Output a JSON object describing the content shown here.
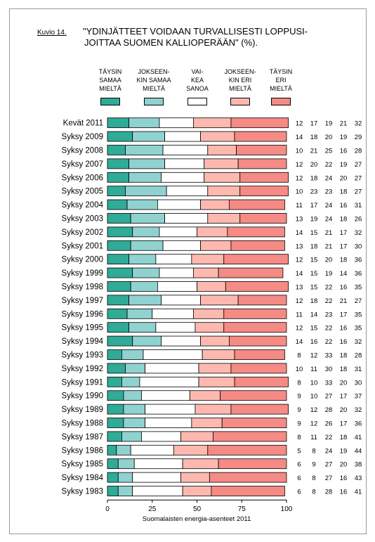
{
  "figure": {
    "label": "Kuvio 14.",
    "title_line1": "\"YDINJÄTTEET VOIDAAN TURVALLISESTI LOPPUSI-",
    "title_line2": "JOITTAA SUOMEN KALLIOPERÄÄN\" (%).",
    "source": "Suomalaisten energia-asenteet 2011"
  },
  "legend": [
    {
      "line1": "TÄYSIN",
      "line2": "SAMAA",
      "line3": "MIELTÄ",
      "color": "#2fab97"
    },
    {
      "line1": "JOKSEEN-",
      "line2": "KIN SAMAA",
      "line3": "MIELTÄ",
      "color": "#8fd2d0"
    },
    {
      "line1": "VAI-",
      "line2": "KEA",
      "line3": "SANOA",
      "color": "#ffffff"
    },
    {
      "line1": "JOKSEEN-",
      "line2": "KIN ERI",
      "line3": "MIELTÄ",
      "color": "#fdb9b0"
    },
    {
      "line1": "TÄYSIN",
      "line2": "ERI",
      "line3": "MIELTÄ",
      "color": "#f58b84"
    }
  ],
  "chart_data": {
    "type": "bar",
    "orientation": "horizontal",
    "stacked": true,
    "xlim": [
      0,
      100
    ],
    "xticks": [
      0,
      25,
      50,
      75,
      100
    ],
    "categories": [
      "Kevät 2011",
      "Syksy 2009",
      "Syksy 2008",
      "Syksy 2007",
      "Syksy 2006",
      "Syksy 2005",
      "Syksy 2004",
      "Syksy 2003",
      "Syksy 2002",
      "Syksy 2001",
      "Syksy 2000",
      "Syksy 1999",
      "Syksy 1998",
      "Syksy 1997",
      "Syksy 1996",
      "Syksy 1995",
      "Syksy 1994",
      "Syksy 1993",
      "Syksy 1992",
      "Syksy 1991",
      "Syksy 1990",
      "Syksy 1989",
      "Syksy 1988",
      "Syksy 1987",
      "Syksy 1986",
      "Syksy 1985",
      "Syksy 1984",
      "Syksy 1983"
    ],
    "series": [
      {
        "name": "TÄYSIN SAMAA MIELTÄ",
        "color": "#2fab97",
        "values": [
          12,
          14,
          10,
          12,
          12,
          10,
          11,
          13,
          14,
          13,
          12,
          14,
          13,
          12,
          11,
          12,
          14,
          8,
          10,
          8,
          9,
          9,
          9,
          8,
          5,
          6,
          6,
          6
        ]
      },
      {
        "name": "JOKSEENKIN SAMAA MIELTÄ",
        "color": "#8fd2d0",
        "values": [
          17,
          18,
          21,
          20,
          18,
          23,
          17,
          19,
          15,
          18,
          15,
          15,
          15,
          18,
          14,
          15,
          16,
          12,
          11,
          10,
          10,
          12,
          12,
          11,
          8,
          9,
          8,
          8
        ]
      },
      {
        "name": "VAIKEA SANOA",
        "color": "#ffffff",
        "values": [
          19,
          20,
          25,
          22,
          24,
          23,
          24,
          24,
          21,
          21,
          20,
          19,
          22,
          22,
          23,
          22,
          22,
          33,
          30,
          33,
          27,
          28,
          26,
          22,
          24,
          27,
          27,
          28
        ]
      },
      {
        "name": "JOKSEENKIN ERI MIELTÄ",
        "color": "#fdb9b0",
        "values": [
          21,
          19,
          16,
          19,
          20,
          18,
          16,
          18,
          17,
          17,
          18,
          14,
          16,
          21,
          17,
          16,
          16,
          18,
          18,
          20,
          17,
          20,
          17,
          18,
          19,
          20,
          16,
          16
        ]
      },
      {
        "name": "TÄYSIN ERI MIELTÄ",
        "color": "#f58b84",
        "values": [
          32,
          29,
          28,
          27,
          27,
          27,
          31,
          26,
          32,
          30,
          36,
          36,
          35,
          27,
          35,
          35,
          32,
          28,
          31,
          30,
          37,
          32,
          36,
          41,
          44,
          38,
          43,
          41
        ]
      }
    ]
  }
}
